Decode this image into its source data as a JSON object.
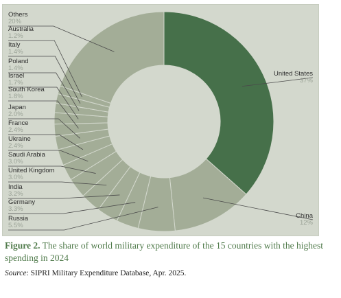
{
  "chart_data": {
    "type": "pie",
    "variant": "donut",
    "title": "",
    "slices": [
      {
        "label": "United States",
        "value": 37,
        "display": "37%"
      },
      {
        "label": "China",
        "value": 12,
        "display": "12%"
      },
      {
        "label": "Russia",
        "value": 5.5,
        "display": "5.5%"
      },
      {
        "label": "Germany",
        "value": 3.3,
        "display": "3.3%"
      },
      {
        "label": "India",
        "value": 3.2,
        "display": "3.2%"
      },
      {
        "label": "United Kingdom",
        "value": 3.0,
        "display": "3.0%"
      },
      {
        "label": "Saudi Arabia",
        "value": 3.0,
        "display": "3.0%"
      },
      {
        "label": "Ukraine",
        "value": 2.4,
        "display": "2.4%"
      },
      {
        "label": "France",
        "value": 2.4,
        "display": "2.4%"
      },
      {
        "label": "Japan",
        "value": 2.0,
        "display": "2.0%"
      },
      {
        "label": "South Korea",
        "value": 1.8,
        "display": "1.8%"
      },
      {
        "label": "Israel",
        "value": 1.7,
        "display": "1.7%"
      },
      {
        "label": "Poland",
        "value": 1.4,
        "display": "1.4%"
      },
      {
        "label": "Italy",
        "value": 1.4,
        "display": "1.4%"
      },
      {
        "label": "Australia",
        "value": 1.2,
        "display": "1.2%"
      },
      {
        "label": "Others",
        "value": 20,
        "display": "20%"
      }
    ],
    "colors": {
      "highlight": "#46704a",
      "default": "#a3ad97",
      "border": "#d3d8cd",
      "hole": "#d3d8cd",
      "leader": "#4a4a4a",
      "background": "#d3d8cd"
    }
  },
  "caption": {
    "figure_label": "Figure 2.",
    "text": " The share of world military expenditure of the 15 countries with the highest spending in 2024"
  },
  "source": {
    "label": "Source",
    "text": ": SIPRI Military Expenditure Database, Apr. 2025."
  }
}
